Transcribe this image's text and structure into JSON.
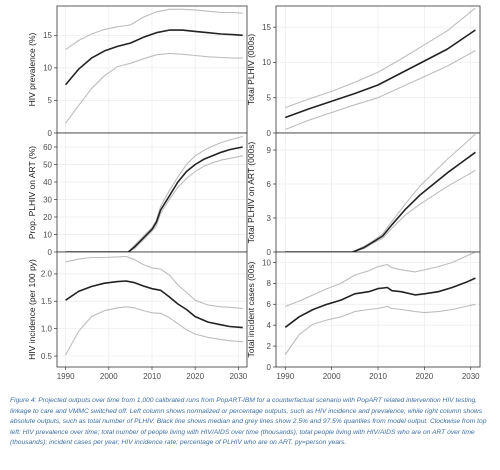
{
  "caption": "Figure 4: Projected outputs over time from 1,000 calibrated runs from PopART-IBM for a counterfactual scenario with PopART related intervention HIV testing, linkage to care and VMMC switched off. Left column shows normalized or percentage outputs, such as HIV incidence and prevalence, while right column shows absolute outputs, such as total number of PLHIV. Black line shows median and grey lines show 2.5% and 97.5% quantiles from model output. Clockwise from top left: HIV prevalence over time; total number of people living with HIV/AIDS over time (thousands); total people living with HIV/AIDS who are on ART over time (thousands); incident cases per year; HIV incidence rate; percentage of PLHIV who are on ART. py=person years.",
  "colors": {
    "median": "#222222",
    "quantile": "#bdbdbd",
    "frame": "#333333",
    "grid": "#ebebeb"
  },
  "x_tick_labels": [
    "1990",
    "2000",
    "2010",
    "2020",
    "2030"
  ],
  "chart_data": [
    {
      "type": "line",
      "ylabel": "HIV prevalence (%)",
      "xlim": [
        1988,
        2032
      ],
      "ylim": [
        0,
        19.5
      ],
      "yticks": [
        0,
        5,
        10,
        15
      ],
      "x": [
        1990,
        1993,
        1996,
        1999,
        2002,
        2005,
        2008,
        2011,
        2014,
        2017,
        2020,
        2023,
        2026,
        2029,
        2031
      ],
      "series": [
        {
          "role": "median",
          "values": [
            7.4,
            9.8,
            11.5,
            12.6,
            13.3,
            13.8,
            14.7,
            15.4,
            15.8,
            15.8,
            15.6,
            15.4,
            15.2,
            15.1,
            15.0
          ]
        },
        {
          "role": "lower",
          "values": [
            1.5,
            4.2,
            6.8,
            8.8,
            10.2,
            10.7,
            11.4,
            12.0,
            12.2,
            12.1,
            11.9,
            11.7,
            11.6,
            11.5,
            11.5
          ]
        },
        {
          "role": "upper",
          "values": [
            12.8,
            14.2,
            15.2,
            15.9,
            16.3,
            16.6,
            17.8,
            18.6,
            19.0,
            19.0,
            18.9,
            18.7,
            18.5,
            18.5,
            18.4
          ]
        }
      ]
    },
    {
      "type": "line",
      "ylabel": "Total PLHIV (000s)",
      "xlim": [
        1988,
        2032
      ],
      "ylim": [
        0,
        18
      ],
      "yticks": [
        0,
        5,
        10,
        15
      ],
      "x": [
        1990,
        1995,
        2000,
        2005,
        2010,
        2015,
        2020,
        2025,
        2031
      ],
      "series": [
        {
          "role": "median",
          "values": [
            2.2,
            3.4,
            4.5,
            5.6,
            6.8,
            8.5,
            10.2,
            11.9,
            14.6
          ]
        },
        {
          "role": "lower",
          "values": [
            0.5,
            1.8,
            2.9,
            4.0,
            5.0,
            6.5,
            8.0,
            9.5,
            11.7
          ]
        },
        {
          "role": "upper",
          "values": [
            3.6,
            4.8,
            5.9,
            7.2,
            8.6,
            10.5,
            12.5,
            14.5,
            17.7
          ]
        }
      ]
    },
    {
      "type": "line",
      "ylabel": "Prop. PLHIV on ART (%)",
      "xlim": [
        1988,
        2032
      ],
      "ylim": [
        0,
        68
      ],
      "yticks": [
        0,
        10,
        20,
        30,
        40,
        50,
        60
      ],
      "x": [
        1990,
        2000,
        2004.5,
        2006,
        2008,
        2010,
        2011,
        2012,
        2014,
        2016,
        2018,
        2020,
        2022,
        2024,
        2026,
        2028,
        2031
      ],
      "series": [
        {
          "role": "median",
          "values": [
            0,
            0,
            0,
            3,
            8,
            13,
            17,
            24,
            32,
            40,
            46,
            50,
            53,
            55,
            57,
            58.5,
            60
          ]
        },
        {
          "role": "lower",
          "values": [
            0,
            0,
            0,
            2,
            7,
            12,
            15,
            22,
            30,
            37,
            42,
            46,
            49,
            51,
            52.5,
            53.5,
            55
          ]
        },
        {
          "role": "upper",
          "values": [
            0,
            0,
            0,
            4,
            9,
            14,
            18,
            26,
            35,
            43,
            50,
            55,
            58,
            60.5,
            62.5,
            64,
            66
          ]
        }
      ]
    },
    {
      "type": "line",
      "ylabel": "Total PLHIV on ART (000s)",
      "xlim": [
        1988,
        2032
      ],
      "ylim": [
        0,
        10.5
      ],
      "yticks": [
        0,
        3,
        6,
        9
      ],
      "x": [
        1990,
        2000,
        2004.5,
        2007,
        2009,
        2011,
        2013,
        2016,
        2019,
        2022,
        2025,
        2028,
        2031
      ],
      "series": [
        {
          "role": "median",
          "values": [
            0,
            0,
            0,
            0.4,
            0.9,
            1.4,
            2.4,
            3.8,
            5.0,
            6.0,
            7.0,
            7.9,
            8.8
          ]
        },
        {
          "role": "lower",
          "values": [
            0,
            0,
            0,
            0.3,
            0.8,
            1.2,
            2.1,
            3.3,
            4.2,
            5.0,
            5.8,
            6.5,
            7.2
          ]
        },
        {
          "role": "upper",
          "values": [
            0,
            0,
            0,
            0.5,
            1.0,
            1.6,
            2.7,
            4.3,
            5.8,
            7.0,
            8.2,
            9.3,
            10.4
          ]
        }
      ]
    },
    {
      "type": "line",
      "ylabel": "HIV incidence (per 100 py)",
      "xlim": [
        1988,
        2032
      ],
      "ylim": [
        0.3,
        2.4
      ],
      "yticks": [
        0.5,
        1.0,
        1.5,
        2.0
      ],
      "x": [
        1990,
        1993,
        1996,
        1999,
        2002,
        2004,
        2006,
        2008,
        2010,
        2012,
        2014,
        2016,
        2018,
        2020,
        2023,
        2026,
        2028,
        2031
      ],
      "series": [
        {
          "role": "median",
          "values": [
            1.52,
            1.68,
            1.77,
            1.83,
            1.86,
            1.87,
            1.84,
            1.78,
            1.73,
            1.7,
            1.58,
            1.45,
            1.35,
            1.22,
            1.12,
            1.07,
            1.04,
            1.02
          ]
        },
        {
          "role": "lower",
          "values": [
            0.52,
            0.95,
            1.22,
            1.33,
            1.38,
            1.4,
            1.38,
            1.33,
            1.29,
            1.28,
            1.2,
            1.09,
            0.98,
            0.9,
            0.84,
            0.8,
            0.78,
            0.76
          ]
        },
        {
          "role": "upper",
          "values": [
            2.22,
            2.27,
            2.3,
            2.3,
            2.31,
            2.32,
            2.26,
            2.17,
            2.11,
            2.09,
            1.98,
            1.8,
            1.66,
            1.52,
            1.43,
            1.4,
            1.39,
            1.37
          ]
        }
      ]
    },
    {
      "type": "line",
      "ylabel": "Total incident cases (00s)",
      "xlim": [
        1988,
        2032
      ],
      "ylim": [
        0,
        11
      ],
      "yticks": [
        0,
        2,
        4,
        6,
        8,
        10
      ],
      "x": [
        1990,
        1993,
        1996,
        1999,
        2002,
        2005,
        2008,
        2010,
        2012,
        2013,
        2015,
        2018,
        2020,
        2023,
        2026,
        2029,
        2031
      ],
      "series": [
        {
          "role": "median",
          "values": [
            3.8,
            4.8,
            5.5,
            6.0,
            6.4,
            7.0,
            7.2,
            7.5,
            7.6,
            7.3,
            7.2,
            6.9,
            7.0,
            7.2,
            7.6,
            8.1,
            8.5
          ]
        },
        {
          "role": "lower",
          "values": [
            1.2,
            3.1,
            4.1,
            4.5,
            4.8,
            5.3,
            5.5,
            5.6,
            5.8,
            5.6,
            5.5,
            5.3,
            5.2,
            5.3,
            5.5,
            5.8,
            6.0
          ]
        },
        {
          "role": "upper",
          "values": [
            5.8,
            6.3,
            6.9,
            7.5,
            8.0,
            8.8,
            9.2,
            9.6,
            9.8,
            9.5,
            9.3,
            9.1,
            9.3,
            9.6,
            10.0,
            10.6,
            11.0
          ]
        }
      ]
    }
  ]
}
